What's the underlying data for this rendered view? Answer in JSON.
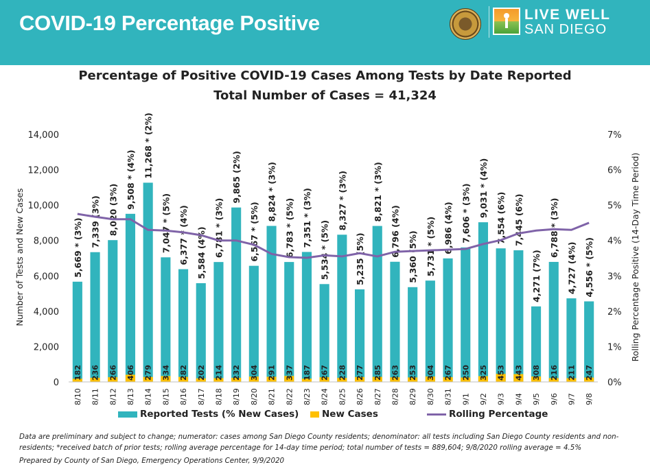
{
  "banner": {
    "title": "COVID-19 Percentage Positive",
    "logo_line1": "LIVE WELL",
    "logo_line2": "SAN DIEGO",
    "background_color": "#31b4bd"
  },
  "colors": {
    "tests": "#31b4bd",
    "cases": "#ffc000",
    "rolling": "#7f63a8"
  },
  "chart_data": {
    "type": "bar",
    "title": "Percentage of Positive COVID-19 Cases Among Tests by Date Reported",
    "subtitle": "Total Number of Cases = 41,324",
    "ylabel": "Number of Tests and New Cases",
    "y2label": "Rolling Percentage Positive (14-Day Time Period)",
    "xlabel": "",
    "ylim": [
      0,
      14000
    ],
    "y2lim": [
      0,
      7
    ],
    "yticks": [
      0,
      2000,
      4000,
      6000,
      8000,
      10000,
      12000,
      14000
    ],
    "yticklabels": [
      "0",
      "2,000",
      "4,000",
      "6,000",
      "8,000",
      "10,000",
      "12,000",
      "14,000"
    ],
    "y2ticks": [
      0,
      1,
      2,
      3,
      4,
      5,
      6,
      7
    ],
    "y2ticklabels": [
      "0%",
      "1%",
      "2%",
      "3%",
      "4%",
      "5%",
      "6%",
      "7%"
    ],
    "grid": false,
    "legend_position": "bottom",
    "categories": [
      "8/10",
      "8/11",
      "8/12",
      "8/13",
      "8/14",
      "8/15",
      "8/16",
      "8/17",
      "8/18",
      "8/19",
      "8/20",
      "8/21",
      "8/22",
      "8/23",
      "8/24",
      "8/25",
      "8/26",
      "8/27",
      "8/28",
      "8/29",
      "8/30",
      "8/31",
      "9/1",
      "9/2",
      "9/3",
      "9/4",
      "9/5",
      "9/6",
      "9/7",
      "9/8"
    ],
    "series": [
      {
        "name": "Reported Tests (% New Cases)",
        "type": "bar",
        "axis": "left",
        "values": [
          5669,
          7339,
          8020,
          9508,
          11268,
          7047,
          6377,
          5584,
          6781,
          9865,
          6567,
          8824,
          6783,
          7351,
          5534,
          8327,
          5235,
          8821,
          6796,
          5360,
          5731,
          6986,
          7606,
          9031,
          7554,
          7445,
          4271,
          6788,
          4727,
          4556
        ],
        "labels": [
          "5,669 * (3%)",
          "7,339  (3%)",
          "8,020  (3%)",
          "9,508 * (4%)",
          "11,268 * (2%)",
          "7,047 * (5%)",
          "6,377 * (4%)",
          "5,584  (4%)",
          "6,781 * (3%)",
          "9,865  (2%)",
          "6,567 * (5%)",
          "8,824 * (3%)",
          "6,783 * (5%)",
          "7,351 * (3%)",
          "5,534 * (5%)",
          "8,327 * (3%)",
          "5,235  (5%)",
          "8,821 * (3%)",
          "6,796  (4%)",
          "5,360  (5%)",
          "5,731 * (5%)",
          "6,986  (4%)",
          "7,606 * (3%)",
          "9,031 * (4%)",
          "7,554  (6%)",
          "7,445  (6%)",
          "4,271  (7%)",
          "6,788 * (3%)",
          "4,727  (4%)",
          "4,556 * (5%)"
        ]
      },
      {
        "name": "New Cases",
        "type": "bar",
        "axis": "left",
        "values": [
          182,
          236,
          266,
          406,
          279,
          334,
          282,
          202,
          214,
          232,
          304,
          291,
          337,
          187,
          267,
          228,
          277,
          285,
          263,
          253,
          304,
          267,
          250,
          325,
          453,
          443,
          308,
          216,
          211,
          247
        ]
      },
      {
        "name": "Rolling Percentage",
        "type": "line",
        "axis": "right",
        "values": [
          4.75,
          4.67,
          4.6,
          4.6,
          4.3,
          4.28,
          4.23,
          4.15,
          4.0,
          4.0,
          3.88,
          3.62,
          3.53,
          3.51,
          3.58,
          3.55,
          3.64,
          3.55,
          3.68,
          3.7,
          3.72,
          3.74,
          3.76,
          3.9,
          4.01,
          4.2,
          4.28,
          4.32,
          4.3,
          4.5
        ]
      }
    ]
  },
  "footnotes": {
    "line1": "Data are preliminary and subject to change; numerator: cases among San Diego County residents; denominator: all tests including San Diego County residents and non-residents; *received batch of prior tests; rolling average percentage for 14-day time period; total number of tests = 889,604; 9/8/2020 rolling average = 4.5%",
    "line2": "Prepared by County of San Diego, Emergency Operations Center, 9/9/2020"
  }
}
